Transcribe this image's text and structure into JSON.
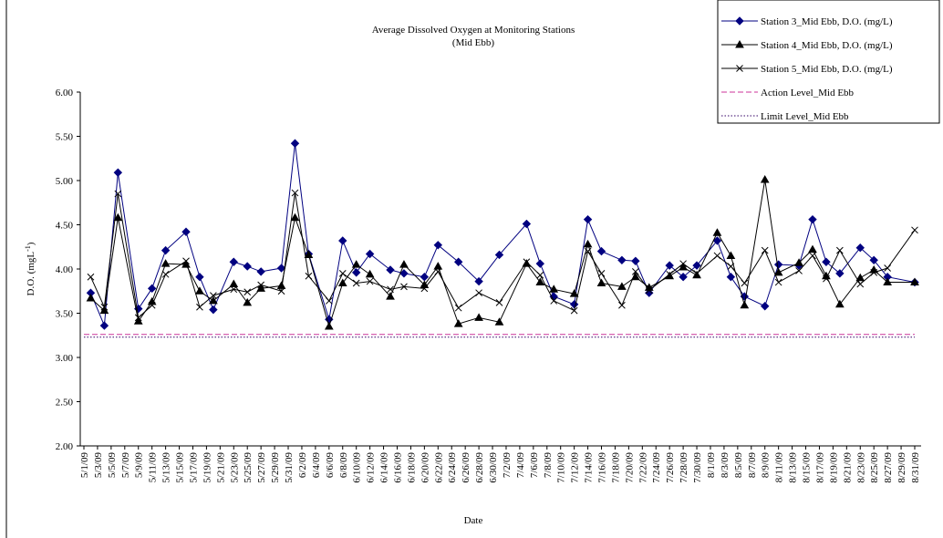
{
  "chart_data": {
    "type": "line",
    "title": "Average Dissolved Oxygen at Monitoring Stations",
    "subtitle": "(Mid Ebb)",
    "x_label": "Date",
    "y_label": {
      "main": "D.O. (mgL",
      "sup": "-1",
      "end": ")"
    },
    "x": [
      "5/2/09",
      "5/4/09",
      "5/6/09",
      "5/9/09",
      "5/11/09",
      "5/13/09",
      "5/16/09",
      "5/18/09",
      "5/20/09",
      "5/23/09",
      "5/25/09",
      "5/27/09",
      "5/30/09",
      "6/1/09",
      "6/3/09",
      "6/6/09",
      "6/8/09",
      "6/10/09",
      "6/12/09",
      "6/15/09",
      "6/17/09",
      "6/20/09",
      "6/22/09",
      "6/25/09",
      "6/28/09",
      "7/1/09",
      "7/5/09",
      "7/7/09",
      "7/9/09",
      "7/12/09",
      "7/14/09",
      "7/16/09",
      "7/19/09",
      "7/21/09",
      "7/23/09",
      "7/26/09",
      "7/28/09",
      "7/30/09",
      "8/2/09",
      "8/4/09",
      "8/6/09",
      "8/9/09",
      "8/11/09",
      "8/14/09",
      "8/16/09",
      "8/18/09",
      "8/20/09",
      "8/23/09",
      "8/25/09",
      "8/27/09",
      "8/31/09"
    ],
    "series": [
      {
        "name": "Station 3_Mid Ebb, D.O. (mg/L)",
        "color": "#000080",
        "marker": "diamond",
        "values": [
          3.73,
          3.36,
          5.09,
          3.55,
          3.78,
          4.21,
          4.42,
          3.91,
          3.54,
          4.08,
          4.03,
          3.97,
          4.01,
          5.42,
          4.17,
          3.43,
          4.32,
          3.96,
          4.17,
          3.99,
          3.95,
          3.91,
          4.27,
          4.08,
          3.86,
          4.16,
          4.51,
          4.06,
          3.69,
          3.6,
          4.56,
          4.2,
          4.1,
          4.09,
          3.73,
          4.04,
          3.91,
          4.04,
          4.32,
          3.91,
          3.69,
          3.58,
          4.05,
          4.04,
          4.56,
          4.08,
          3.95,
          4.24,
          4.1,
          3.91,
          3.85
        ]
      },
      {
        "name": "Station 4_Mid Ebb, D.O. (mg/L)",
        "color": "#000000",
        "marker": "triangle",
        "values": [
          3.67,
          3.53,
          4.58,
          3.41,
          3.63,
          4.06,
          4.05,
          3.75,
          3.64,
          3.83,
          3.62,
          3.78,
          3.81,
          4.58,
          4.16,
          3.35,
          3.84,
          4.05,
          3.94,
          3.69,
          4.05,
          3.82,
          4.03,
          3.38,
          3.45,
          3.4,
          4.06,
          3.85,
          3.77,
          3.72,
          4.28,
          3.84,
          3.8,
          3.91,
          3.79,
          3.92,
          4.02,
          3.93,
          4.41,
          4.15,
          3.59,
          5.01,
          3.96,
          4.07,
          4.22,
          3.92,
          3.6,
          3.9,
          3.99,
          3.85,
          3.85
        ]
      },
      {
        "name": "Station 5_Mid Ebb, D.O. (mg/L)",
        "color": "#000000",
        "marker": "cross",
        "values": [
          3.91,
          3.57,
          4.85,
          3.45,
          3.59,
          3.94,
          4.09,
          3.57,
          3.7,
          3.77,
          3.74,
          3.82,
          3.75,
          4.86,
          3.92,
          3.64,
          3.95,
          3.84,
          3.86,
          3.77,
          3.8,
          3.78,
          3.97,
          3.56,
          3.73,
          3.62,
          4.08,
          3.93,
          3.64,
          3.53,
          4.2,
          3.95,
          3.59,
          3.97,
          3.76,
          3.94,
          4.06,
          3.95,
          4.15,
          4.03,
          3.84,
          4.21,
          3.85,
          3.98,
          4.15,
          3.89,
          4.21,
          3.83,
          3.96,
          4.01,
          4.44
        ]
      }
    ],
    "reference_lines": [
      {
        "name": "Action Level_Mid Ebb",
        "color": "#cc3399",
        "style": "dashed",
        "value": 3.26
      },
      {
        "name": "Limit Level_Mid Ebb",
        "color": "#330066",
        "style": "dotted",
        "value": 3.23
      }
    ],
    "xlim": [
      "5/1/09",
      "8/31/09"
    ],
    "xticks": [
      "5/1/09",
      "5/3/09",
      "5/5/09",
      "5/7/09",
      "5/9/09",
      "5/11/09",
      "5/13/09",
      "5/15/09",
      "5/17/09",
      "5/19/09",
      "5/21/09",
      "5/23/09",
      "5/25/09",
      "5/27/09",
      "5/29/09",
      "5/31/09",
      "6/2/09",
      "6/4/09",
      "6/6/09",
      "6/8/09",
      "6/10/09",
      "6/12/09",
      "6/14/09",
      "6/16/09",
      "6/18/09",
      "6/20/09",
      "6/22/09",
      "6/24/09",
      "6/26/09",
      "6/28/09",
      "6/30/09",
      "7/2/09",
      "7/4/09",
      "7/6/09",
      "7/8/09",
      "7/10/09",
      "7/12/09",
      "7/14/09",
      "7/16/09",
      "7/18/09",
      "7/20/09",
      "7/22/09",
      "7/24/09",
      "7/26/09",
      "7/28/09",
      "7/30/09",
      "8/1/09",
      "8/3/09",
      "8/5/09",
      "8/7/09",
      "8/9/09",
      "8/11/09",
      "8/13/09",
      "8/15/09",
      "8/17/09",
      "8/19/09",
      "8/21/09",
      "8/23/09",
      "8/25/09",
      "8/27/09",
      "8/29/09",
      "8/31/09"
    ],
    "ylim": [
      2,
      6
    ],
    "yticks": [
      {
        "value": 2,
        "label": "2.00"
      },
      {
        "value": 2.5,
        "label": "2.50"
      },
      {
        "value": 3,
        "label": "3.00"
      },
      {
        "value": 3.5,
        "label": "3.50"
      },
      {
        "value": 4,
        "label": "4.00"
      },
      {
        "value": 4.5,
        "label": "4.50"
      },
      {
        "value": 5,
        "label": "5.00"
      },
      {
        "value": 5.5,
        "label": "5.50"
      },
      {
        "value": 6,
        "label": "6.00"
      }
    ],
    "legend": "top-right"
  }
}
